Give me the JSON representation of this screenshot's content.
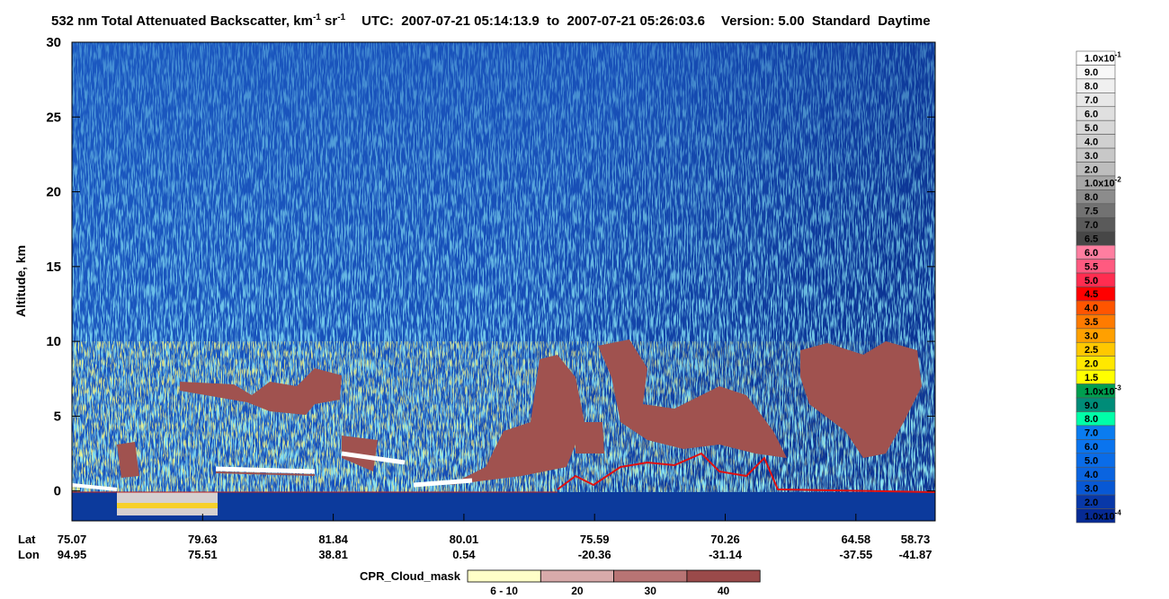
{
  "title": {
    "text1": "532 nm Total Attenuated Backscatter, km",
    "sup1": "-1",
    "text2": " sr",
    "sup2": "-1",
    "utc": "UTC:  2007-07-21 05:14:13.9  to  2007-07-21 05:26:03.6",
    "version": "Version: 5.00  Standard  Daytime"
  },
  "y_axis": {
    "label": "Altitude, km",
    "ylim": [
      -2,
      30
    ],
    "yticks": [
      0,
      5,
      10,
      15,
      20,
      25,
      30
    ]
  },
  "x_axis": {
    "rows": [
      "Lat",
      "Lon"
    ],
    "ticks": [
      {
        "lat": "75.07",
        "lon": "94.95"
      },
      {
        "lat": "79.63",
        "lon": "75.51"
      },
      {
        "lat": "81.84",
        "lon": "38.81"
      },
      {
        "lat": "80.01",
        "lon": "0.54"
      },
      {
        "lat": "75.59",
        "lon": "-20.36"
      },
      {
        "lat": "70.26",
        "lon": "-31.14"
      },
      {
        "lat": "64.58",
        "lon": "-37.55"
      },
      {
        "lat": "58.73",
        "lon": "-41.87"
      }
    ]
  },
  "colorbar": {
    "labels": [
      {
        "text": "1.0x10",
        "sup": "-1"
      },
      {
        "text": "9.0"
      },
      {
        "text": "8.0"
      },
      {
        "text": "7.0"
      },
      {
        "text": "6.0"
      },
      {
        "text": "5.0"
      },
      {
        "text": "4.0"
      },
      {
        "text": "3.0"
      },
      {
        "text": "2.0"
      },
      {
        "text": "1.0x10",
        "sup": "-2"
      },
      {
        "text": "8.0"
      },
      {
        "text": "7.5"
      },
      {
        "text": "7.0"
      },
      {
        "text": "6.5"
      },
      {
        "text": "6.0"
      },
      {
        "text": "5.5"
      },
      {
        "text": "5.0"
      },
      {
        "text": "4.5"
      },
      {
        "text": "4.0"
      },
      {
        "text": "3.5"
      },
      {
        "text": "3.0"
      },
      {
        "text": "2.5"
      },
      {
        "text": "2.0"
      },
      {
        "text": "1.5"
      },
      {
        "text": "1.0x10",
        "sup": "-3"
      },
      {
        "text": "9.0"
      },
      {
        "text": "8.0"
      },
      {
        "text": "7.0"
      },
      {
        "text": "6.0"
      },
      {
        "text": "5.0"
      },
      {
        "text": "4.0"
      },
      {
        "text": "3.0"
      },
      {
        "text": "2.0"
      },
      {
        "text": "1.0x10",
        "sup": "-4"
      }
    ],
    "colors": [
      "#ffffff",
      "#f8f8f8",
      "#f0f0f0",
      "#e8e8e8",
      "#e0e0e0",
      "#d8d8d8",
      "#d0d0d0",
      "#c8c8c8",
      "#bdbdbd",
      "#a6a6a6",
      "#8c8c8c",
      "#727272",
      "#5a5a5a",
      "#474747",
      "#ff7ea0",
      "#ff5a80",
      "#ff2d50",
      "#ff0000",
      "#ff5500",
      "#ff7b00",
      "#ffa000",
      "#ffc800",
      "#ffe800",
      "#ffff00",
      "#009e4f",
      "#008c78",
      "#00ffa8",
      "#0a7cf0",
      "#0a74ee",
      "#0a6ce8",
      "#0a64e0",
      "#0858d4",
      "#0838a8",
      "#062a94"
    ]
  },
  "cloud_mask": {
    "label": "CPR_Cloud_mask",
    "classes": [
      {
        "label": "6 - 10",
        "color": "#ffffc8"
      },
      {
        "label": "20",
        "color": "#d8aaaa"
      },
      {
        "label": "30",
        "color": "#b87474"
      },
      {
        "label": "40",
        "color": "#9a4a4a"
      }
    ]
  }
}
